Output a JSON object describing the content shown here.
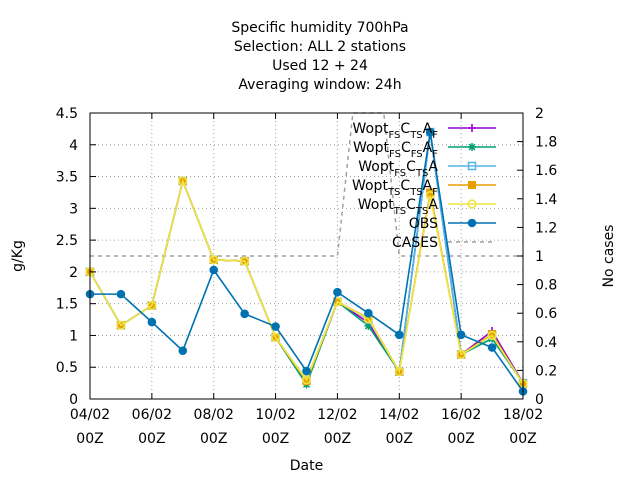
{
  "chart_data": {
    "type": "line",
    "title_lines": [
      "Specific humidity 700hPa",
      "Selection: ALL       2 stations",
      "Used  12 + 24",
      "Averaging window: 24h"
    ],
    "xlabel": "Date",
    "ylabel": "g/Kg",
    "y2label": "No cases",
    "x_ticks": [
      {
        "x": 0,
        "line1": "04/02",
        "line2": "00Z"
      },
      {
        "x": 2,
        "line1": "06/02",
        "line2": "00Z"
      },
      {
        "x": 4,
        "line1": "08/02",
        "line2": "00Z"
      },
      {
        "x": 6,
        "line1": "10/02",
        "line2": "00Z"
      },
      {
        "x": 8,
        "line1": "12/02",
        "line2": "00Z"
      },
      {
        "x": 10,
        "line1": "14/02",
        "line2": "00Z"
      },
      {
        "x": 12,
        "line1": "16/02",
        "line2": "00Z"
      },
      {
        "x": 14,
        "line1": "18/02",
        "line2": "00Z"
      }
    ],
    "x_unit_note": "days since 04/02 00Z",
    "xlim": [
      0,
      14
    ],
    "ylim": [
      0,
      4.5
    ],
    "y_ticks": [
      "0",
      "0.5",
      "1",
      "1.5",
      "2",
      "2.5",
      "3",
      "3.5",
      "4",
      "4.5"
    ],
    "y2lim": [
      0,
      2
    ],
    "y2_ticks": [
      "0",
      "0.2",
      "0.4",
      "0.6",
      "0.8",
      "1",
      "1.2",
      "1.4",
      "1.6",
      "1.8",
      "2"
    ],
    "grid": true,
    "legend_position": "top-right",
    "x": [
      0,
      1,
      2,
      3,
      4,
      5,
      6,
      7,
      8,
      9,
      10,
      11,
      12,
      13,
      14
    ],
    "series": [
      {
        "name_main": "Wopt",
        "name_parts": [
          [
            "FS",
            "C"
          ],
          [
            "TS",
            "A"
          ],
          [
            "F",
            ""
          ]
        ],
        "color": "#9400d3",
        "marker": "plus",
        "values": [
          2.0,
          1.16,
          1.47,
          3.43,
          2.19,
          2.17,
          0.97,
          0.25,
          1.53,
          1.2,
          0.43,
          4.2,
          0.7,
          1.07,
          0.25
        ]
      },
      {
        "name_main": "Wopt",
        "name_parts": [
          [
            "FS",
            "C"
          ],
          [
            "FS",
            "A"
          ],
          [
            "F",
            ""
          ]
        ],
        "color": "#009e73",
        "marker": "star",
        "values": [
          2.0,
          1.16,
          1.47,
          3.43,
          2.19,
          2.17,
          0.97,
          0.23,
          1.53,
          1.15,
          0.43,
          4.2,
          0.7,
          0.95,
          0.25
        ]
      },
      {
        "name_main": "Wopt",
        "name_parts": [
          [
            "FS",
            "C"
          ],
          [
            "TS",
            "A"
          ],
          [
            "",
            ""
          ]
        ],
        "color": "#56b4e9",
        "marker": "box",
        "values": [
          2.0,
          1.16,
          1.47,
          3.43,
          2.19,
          2.17,
          0.97,
          0.3,
          1.53,
          1.25,
          0.43,
          4.2,
          0.7,
          1.0,
          0.25
        ]
      },
      {
        "name_main": "Wopt",
        "name_parts": [
          [
            "TS",
            "C"
          ],
          [
            "TS",
            "A"
          ],
          [
            "F",
            ""
          ]
        ],
        "color": "#e69f00",
        "marker": "fillbox",
        "values": [
          2.0,
          1.16,
          1.47,
          3.43,
          2.19,
          2.17,
          0.97,
          0.28,
          1.53,
          1.27,
          0.43,
          3.25,
          0.7,
          1.02,
          0.24
        ]
      },
      {
        "name_main": "Wopt",
        "name_parts": [
          [
            "TS",
            "C"
          ],
          [
            "TS",
            "A"
          ],
          [
            "",
            ""
          ]
        ],
        "color": "#f0e442",
        "marker": "circle",
        "values": [
          2.0,
          1.16,
          1.47,
          3.43,
          2.19,
          2.17,
          0.97,
          0.3,
          1.53,
          1.26,
          0.43,
          3.2,
          0.7,
          1.0,
          0.24
        ]
      },
      {
        "name_main": "OBS",
        "name_parts": [],
        "color": "#0072b2",
        "marker": "fillcircle",
        "values": [
          1.65,
          1.65,
          1.21,
          0.76,
          2.03,
          1.34,
          1.14,
          0.44,
          1.68,
          1.35,
          1.01,
          4.2,
          1.01,
          0.81,
          0.12
        ]
      }
    ],
    "cases_series": {
      "name": "CASES",
      "color": "#a0a0a4",
      "axis": "y2",
      "x": [
        0,
        7,
        8,
        8.5,
        9.5,
        10,
        12,
        14
      ],
      "values": [
        1,
        1,
        1,
        2,
        2,
        1,
        1,
        1
      ]
    }
  }
}
